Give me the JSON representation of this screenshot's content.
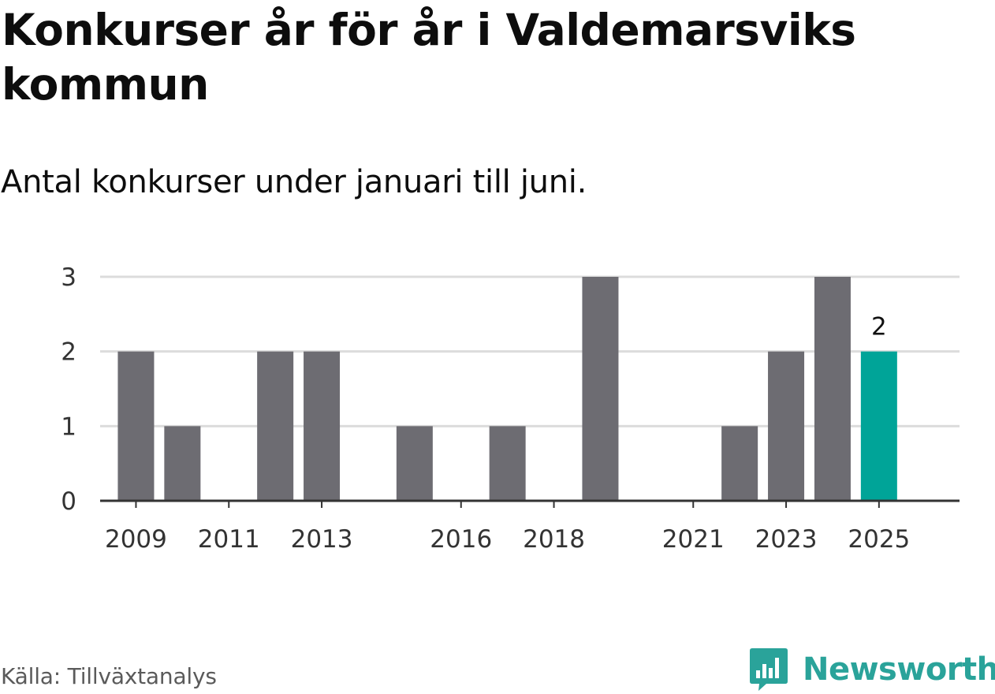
{
  "header": {
    "title": "Konkurser år för år i Valdemarsviks kommun",
    "subtitle": "Antal konkurser under januari till juni."
  },
  "footer": {
    "source": "Källa: Tillväxtanalys",
    "brand": "Newsworthy"
  },
  "colors": {
    "bar": "#6d6c72",
    "highlight": "#00a498",
    "grid": "#dcdcdc",
    "axis": "#333333",
    "brand": "#2aa39a"
  },
  "chart_data": {
    "type": "bar",
    "categories": [
      "2009",
      "2010",
      "2011",
      "2012",
      "2013",
      "2014",
      "2015",
      "2016",
      "2017",
      "2018",
      "2019",
      "2020",
      "2021",
      "2022",
      "2023",
      "2024",
      "2025"
    ],
    "values": [
      2,
      1,
      0,
      2,
      2,
      0,
      1,
      0,
      1,
      0,
      3,
      0,
      0,
      1,
      2,
      3,
      2
    ],
    "x_tick_labels": [
      "2009",
      "2011",
      "2013",
      "2016",
      "2018",
      "2021",
      "2023",
      "2025"
    ],
    "y_ticks": [
      0,
      1,
      2,
      3
    ],
    "ylim": [
      0,
      3
    ],
    "highlight_category": "2025",
    "data_labels": [
      {
        "category": "2025",
        "text": "2"
      }
    ],
    "title": "Konkurser år för år i Valdemarsviks kommun",
    "subtitle": "Antal konkurser under januari till juni.",
    "xlabel": "",
    "ylabel": "",
    "grid": true,
    "legend": "none"
  }
}
